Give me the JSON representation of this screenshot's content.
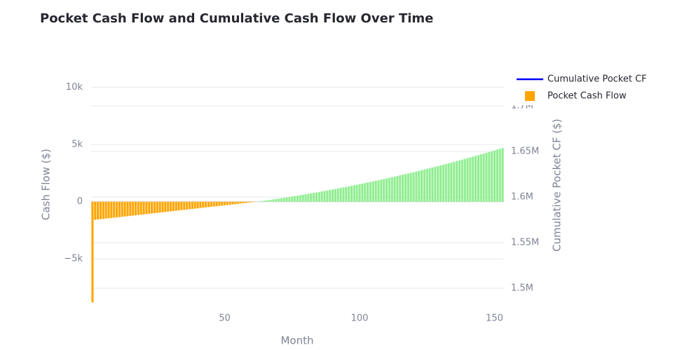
{
  "chart_data": {
    "type": "bar",
    "title": "Pocket Cash Flow and Cumulative Cash Flow Over Time",
    "x_label": "Month",
    "y_label": "Cash Flow ($)",
    "y2_label": "Cumulative Pocket CF ($)",
    "x": [
      1,
      2,
      3,
      4,
      5,
      6,
      7,
      8,
      9,
      10,
      11,
      12,
      13,
      14,
      15,
      16,
      17,
      18,
      19,
      20,
      21,
      22,
      23,
      24,
      25,
      26,
      27,
      28,
      29,
      30,
      31,
      32,
      33,
      34,
      35,
      36,
      37,
      38,
      39,
      40,
      41,
      42,
      43,
      44,
      45,
      46,
      47,
      48,
      49,
      50,
      51,
      52,
      53,
      54,
      55,
      56,
      57,
      58,
      59,
      60,
      61,
      62,
      63,
      64,
      65,
      66,
      67,
      68,
      69,
      70,
      71,
      72,
      73,
      74,
      75,
      76,
      77,
      78,
      79,
      80,
      81,
      82,
      83,
      84,
      85,
      86,
      87,
      88,
      89,
      90,
      91,
      92,
      93,
      94,
      95,
      96,
      97,
      98,
      99,
      100,
      101,
      102,
      103,
      104,
      105,
      106,
      107,
      108,
      109,
      110,
      111,
      112,
      113,
      114,
      115,
      116,
      117,
      118,
      119,
      120,
      121,
      122,
      123,
      124,
      125,
      126,
      127,
      128,
      129,
      130,
      131,
      132,
      133,
      134,
      135,
      136,
      137,
      138,
      139,
      140,
      141,
      142,
      143,
      144,
      145,
      146,
      147,
      148,
      149,
      150,
      151,
      152,
      153
    ],
    "series": [
      {
        "name": "Cumulative Pocket CF",
        "color": "#0000ff",
        "axis": "y2",
        "mark": "line"
      },
      {
        "name": "Pocket Cash Flow",
        "color": "#ffa500",
        "positive_color": "#90ee90",
        "values": [
          -8800,
          -1580,
          -1554,
          -1527,
          -1501,
          -1475,
          -1448,
          -1422,
          -1396,
          -1369,
          -1343,
          -1317,
          -1290,
          -1264,
          -1238,
          -1211,
          -1185,
          -1159,
          -1132,
          -1106,
          -1080,
          -1053,
          -1027,
          -1001,
          -974,
          -948,
          -922,
          -895,
          -869,
          -843,
          -816,
          -790,
          -764,
          -737,
          -711,
          -685,
          -658,
          -632,
          -606,
          -579,
          -553,
          -527,
          -500,
          -474,
          -448,
          -421,
          -395,
          -369,
          -342,
          -316,
          -290,
          -263,
          -237,
          -211,
          -184,
          -158,
          -132,
          -105,
          -79,
          -53,
          -26,
          10,
          32,
          65,
          99,
          132,
          166,
          201,
          236,
          271,
          307,
          343,
          380,
          417,
          455,
          493,
          531,
          570,
          609,
          649,
          689,
          729,
          770,
          812,
          853,
          896,
          938,
          981,
          1025,
          1069,
          1113,
          1158,
          1203,
          1249,
          1295,
          1341,
          1388,
          1435,
          1483,
          1531,
          1580,
          1629,
          1678,
          1728,
          1778,
          1829,
          1880,
          1932,
          1984,
          2036,
          2089,
          2143,
          2196,
          2250,
          2305,
          2360,
          2415,
          2471,
          2527,
          2584,
          2641,
          2699,
          2757,
          2815,
          2874,
          2933,
          2993,
          3053,
          3114,
          3175,
          3236,
          3298,
          3360,
          3423,
          3486,
          3549,
          3613,
          3678,
          3742,
          3808,
          3873,
          3939,
          4006,
          4073,
          4140,
          4208,
          4276,
          4345,
          4414,
          4483,
          4553,
          4623,
          4694
        ]
      }
    ],
    "xlim": [
      0.5,
      153.5
    ],
    "xticks": [
      50,
      100,
      150
    ],
    "ylim": [
      -8850,
      10700
    ],
    "yticks": [
      {
        "value": -5000,
        "label": "−5k"
      },
      0,
      {
        "value": 5000,
        "label": "5k"
      },
      {
        "value": 10000,
        "label": "10k"
      }
    ],
    "y2lim": [
      1483800,
      1729200
    ],
    "y2ticks": [
      {
        "value": 1500000,
        "label": "1.5M"
      },
      {
        "value": 1550000,
        "label": "1.55M"
      },
      {
        "value": 1600000,
        "label": "1.6M"
      },
      {
        "value": 1650000,
        "label": "1.65M"
      },
      {
        "value": 1700000,
        "label": "1.7M"
      }
    ],
    "grid": true,
    "legend": "top-right"
  }
}
